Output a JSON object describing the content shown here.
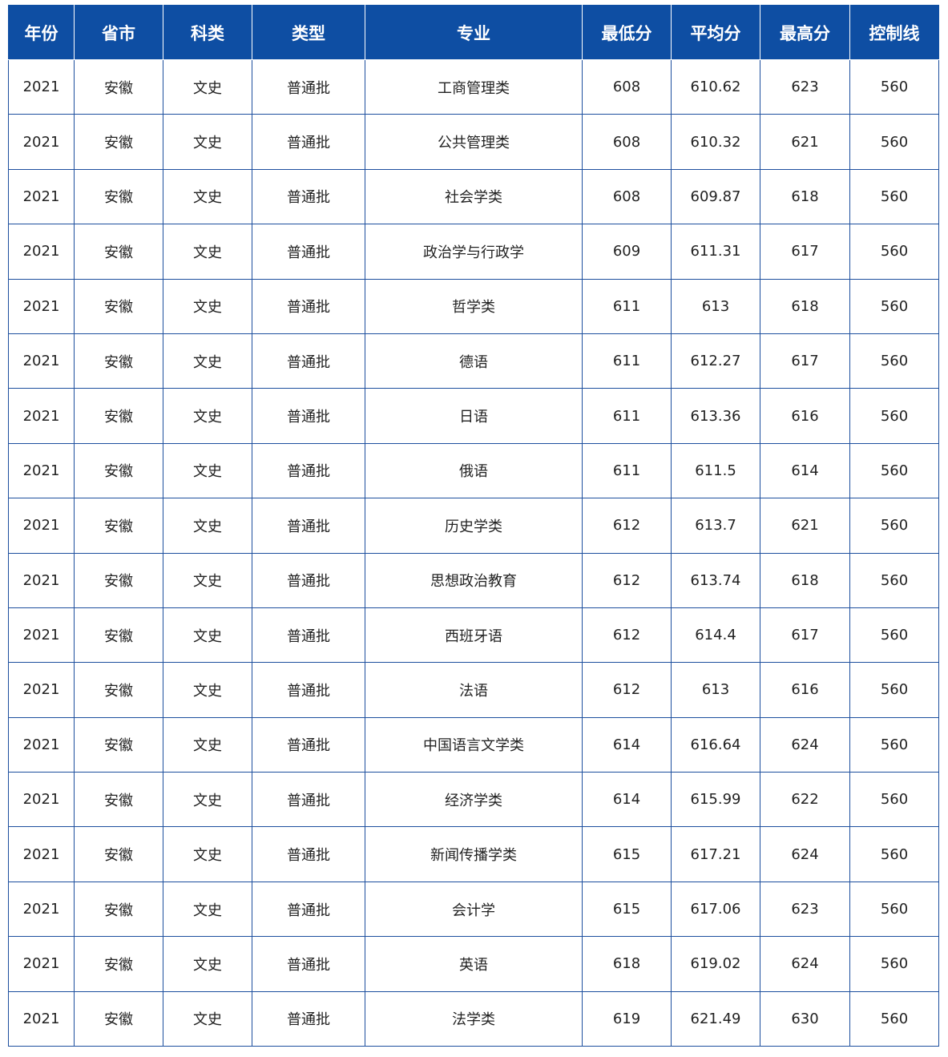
{
  "table": {
    "headers": [
      "年份",
      "省市",
      "科类",
      "类型",
      "专业",
      "最低分",
      "平均分",
      "最高分",
      "控制线"
    ],
    "rows": [
      [
        "2021",
        "安徽",
        "文史",
        "普通批",
        "工商管理类",
        "608",
        "610.62",
        "623",
        "560"
      ],
      [
        "2021",
        "安徽",
        "文史",
        "普通批",
        "公共管理类",
        "608",
        "610.32",
        "621",
        "560"
      ],
      [
        "2021",
        "安徽",
        "文史",
        "普通批",
        "社会学类",
        "608",
        "609.87",
        "618",
        "560"
      ],
      [
        "2021",
        "安徽",
        "文史",
        "普通批",
        "政治学与行政学",
        "609",
        "611.31",
        "617",
        "560"
      ],
      [
        "2021",
        "安徽",
        "文史",
        "普通批",
        "哲学类",
        "611",
        "613",
        "618",
        "560"
      ],
      [
        "2021",
        "安徽",
        "文史",
        "普通批",
        "德语",
        "611",
        "612.27",
        "617",
        "560"
      ],
      [
        "2021",
        "安徽",
        "文史",
        "普通批",
        "日语",
        "611",
        "613.36",
        "616",
        "560"
      ],
      [
        "2021",
        "安徽",
        "文史",
        "普通批",
        "俄语",
        "611",
        "611.5",
        "614",
        "560"
      ],
      [
        "2021",
        "安徽",
        "文史",
        "普通批",
        "历史学类",
        "612",
        "613.7",
        "621",
        "560"
      ],
      [
        "2021",
        "安徽",
        "文史",
        "普通批",
        "思想政治教育",
        "612",
        "613.74",
        "618",
        "560"
      ],
      [
        "2021",
        "安徽",
        "文史",
        "普通批",
        "西班牙语",
        "612",
        "614.4",
        "617",
        "560"
      ],
      [
        "2021",
        "安徽",
        "文史",
        "普通批",
        "法语",
        "612",
        "613",
        "616",
        "560"
      ],
      [
        "2021",
        "安徽",
        "文史",
        "普通批",
        "中国语言文学类",
        "614",
        "616.64",
        "624",
        "560"
      ],
      [
        "2021",
        "安徽",
        "文史",
        "普通批",
        "经济学类",
        "614",
        "615.99",
        "622",
        "560"
      ],
      [
        "2021",
        "安徽",
        "文史",
        "普通批",
        "新闻传播学类",
        "615",
        "617.21",
        "624",
        "560"
      ],
      [
        "2021",
        "安徽",
        "文史",
        "普通批",
        "会计学",
        "615",
        "617.06",
        "623",
        "560"
      ],
      [
        "2021",
        "安徽",
        "文史",
        "普通批",
        "英语",
        "618",
        "619.02",
        "624",
        "560"
      ],
      [
        "2021",
        "安徽",
        "文史",
        "普通批",
        "法学类",
        "619",
        "621.49",
        "630",
        "560"
      ]
    ]
  },
  "colors": {
    "header_bg": "#0e4ea3",
    "border": "#1d4f9e"
  }
}
